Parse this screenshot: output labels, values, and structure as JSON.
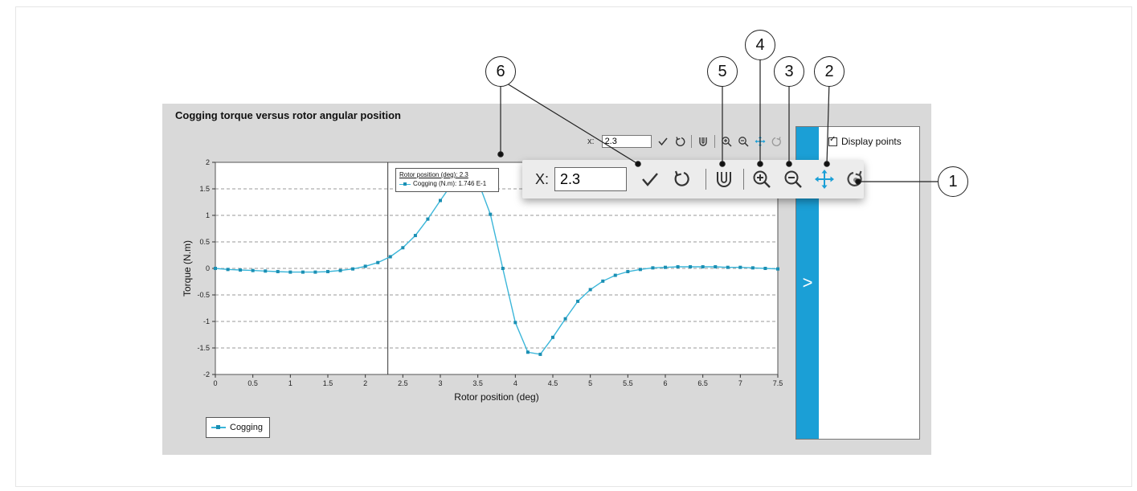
{
  "panel": {
    "title": "Cogging torque versus rotor angular position"
  },
  "small_toolbar": {
    "x_label": "x:",
    "x_value": "2.3"
  },
  "big_toolbar": {
    "x_label": "X:",
    "x_value": "2.3",
    "icons": [
      "validate-check-icon",
      "reset-icon",
      "magnet-snap-icon",
      "zoom-in-icon",
      "zoom-out-icon",
      "pan-move-icon",
      "refresh-view-icon"
    ]
  },
  "tooltip": {
    "title": "Rotor position (deg): 2.3",
    "series_text": "Cogging (N.m): 1.746 E-1"
  },
  "side_panel": {
    "display_points_label": "Display points",
    "display_points_checked": true,
    "collapse_glyph": ">"
  },
  "legend": {
    "label": "Cogging"
  },
  "callouts": [
    "1",
    "2",
    "3",
    "4",
    "5",
    "6"
  ],
  "colors": {
    "series": "#3bb6d9",
    "marker": "#1b8fb3",
    "strip": "#1b9fd6",
    "panel_bg": "#d9d9d9"
  },
  "chart_data": {
    "type": "line",
    "xlabel": "Rotor position (deg)",
    "ylabel": "Torque (N.m)",
    "xlim": [
      0,
      7.5
    ],
    "ylim": [
      -2,
      2
    ],
    "x_ticks": [
      "0",
      "0.5",
      "1",
      "1.5",
      "2",
      "2.5",
      "3",
      "3.5",
      "4",
      "4.5",
      "5",
      "5.5",
      "6",
      "6.5",
      "7",
      "7.5"
    ],
    "y_ticks": [
      "2",
      "1.5",
      "1",
      "0.5",
      "0",
      "-0.5",
      "-1",
      "-1.5",
      "-2"
    ],
    "y_grid_dashed": true,
    "cursor_x": 2.3,
    "series": [
      {
        "name": "Cogging",
        "x": [
          0,
          0.167,
          0.333,
          0.5,
          0.667,
          0.833,
          1.0,
          1.167,
          1.333,
          1.5,
          1.667,
          1.833,
          2.0,
          2.167,
          2.333,
          2.5,
          2.667,
          2.833,
          3.0,
          3.167,
          3.333,
          3.5,
          3.667,
          3.833,
          4.0,
          4.167,
          4.333,
          4.5,
          4.667,
          4.833,
          5.0,
          5.167,
          5.333,
          5.5,
          5.667,
          5.833,
          6.0,
          6.167,
          6.333,
          6.5,
          6.667,
          6.833,
          7.0,
          7.167,
          7.333,
          7.5
        ],
        "y": [
          0.0,
          -0.02,
          -0.03,
          -0.04,
          -0.05,
          -0.06,
          -0.07,
          -0.07,
          -0.07,
          -0.06,
          -0.04,
          -0.01,
          0.04,
          0.11,
          0.22,
          0.39,
          0.62,
          0.93,
          1.28,
          1.62,
          1.8,
          1.65,
          1.02,
          0.0,
          -1.02,
          -1.58,
          -1.62,
          -1.3,
          -0.95,
          -0.62,
          -0.4,
          -0.24,
          -0.13,
          -0.06,
          -0.02,
          0.01,
          0.02,
          0.03,
          0.03,
          0.03,
          0.03,
          0.02,
          0.02,
          0.01,
          0.0,
          -0.01
        ]
      }
    ]
  }
}
